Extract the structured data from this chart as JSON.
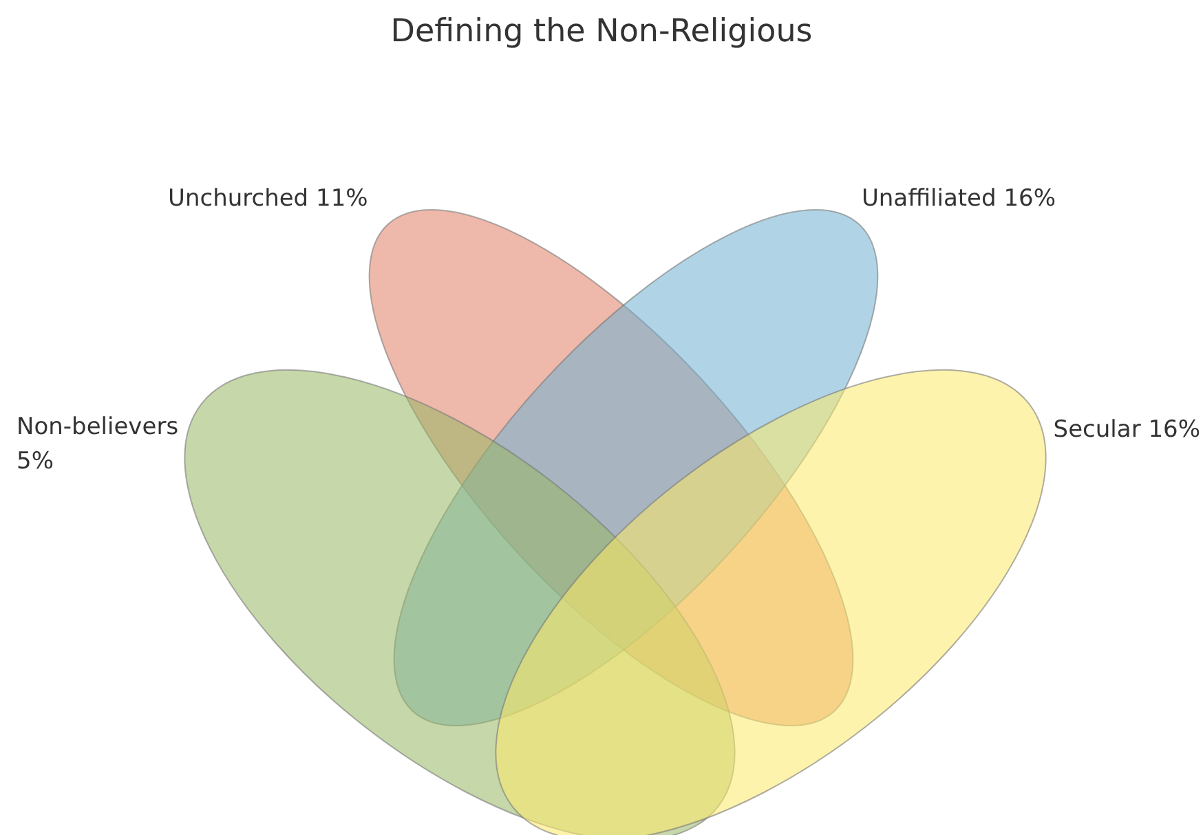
{
  "chart_data": {
    "type": "other",
    "title": "Defining the Non-Religious",
    "categories": [
      "Unchurched",
      "Unaffiliated",
      "Non-believers",
      "Secular"
    ],
    "values": [
      11,
      16,
      5,
      16
    ],
    "value_labels": [
      "11%",
      "16%",
      "5%",
      "16%"
    ],
    "colors": [
      "#e07f65",
      "#6fb0cf",
      "#97b765",
      "#fde96a"
    ],
    "legend": false
  }
}
